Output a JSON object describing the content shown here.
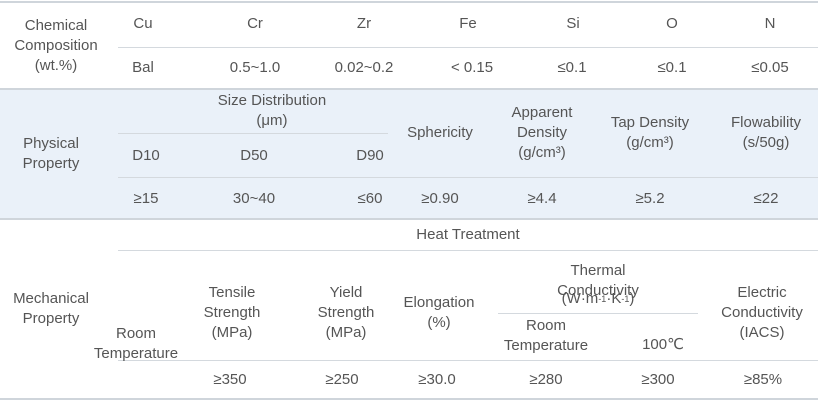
{
  "chemical": {
    "section_label": "Chemical\nComposition\n(wt.%)",
    "elements": [
      "Cu",
      "Cr",
      "Zr",
      "Fe",
      "Si",
      "O",
      "N"
    ],
    "values": [
      "Bal",
      "0.5~1.0",
      "0.02~0.2",
      "< 0.15",
      "≤0.1",
      "≤0.1",
      "≤0.05"
    ]
  },
  "physical": {
    "section_label": "Physical\nProperty",
    "size_distribution_label": "Size Distribution\n(μm)",
    "sub_headers": [
      "D10",
      "D50",
      "D90"
    ],
    "headers": [
      "Sphericity",
      "Apparent\nDensity\n(g/cm³)",
      "Tap Density\n(g/cm³)",
      "Flowability\n(s/50g)"
    ],
    "values": [
      "≥15",
      "30~40",
      "≤60",
      "≥0.90",
      "≥4.4",
      "≥5.2",
      "≤22"
    ]
  },
  "mechanical": {
    "section_label": "Mechanical\nProperty",
    "heat_treatment_label": "Heat Treatment",
    "room_temperature_label": "Room\nTemperature",
    "headers": [
      "Tensile\nStrength\n(MPa)",
      "Yield\nStrength\n(MPa)",
      "Elongation\n(%)"
    ],
    "thermal_label_line1": "Thermal\nConductivity",
    "thermal_unit_main": "W·m",
    "thermal_unit_exp1": "-1",
    "thermal_unit_mid": "·K",
    "thermal_unit_exp2": "-1",
    "thermal_sub_headers": [
      "Room\nTemperature",
      "100℃"
    ],
    "electric_label": "Electric\nConductivity\n(IACS)",
    "values": [
      "≥350",
      "≥250",
      "≥30.0",
      "≥280",
      "≥300",
      "≥85%"
    ]
  }
}
